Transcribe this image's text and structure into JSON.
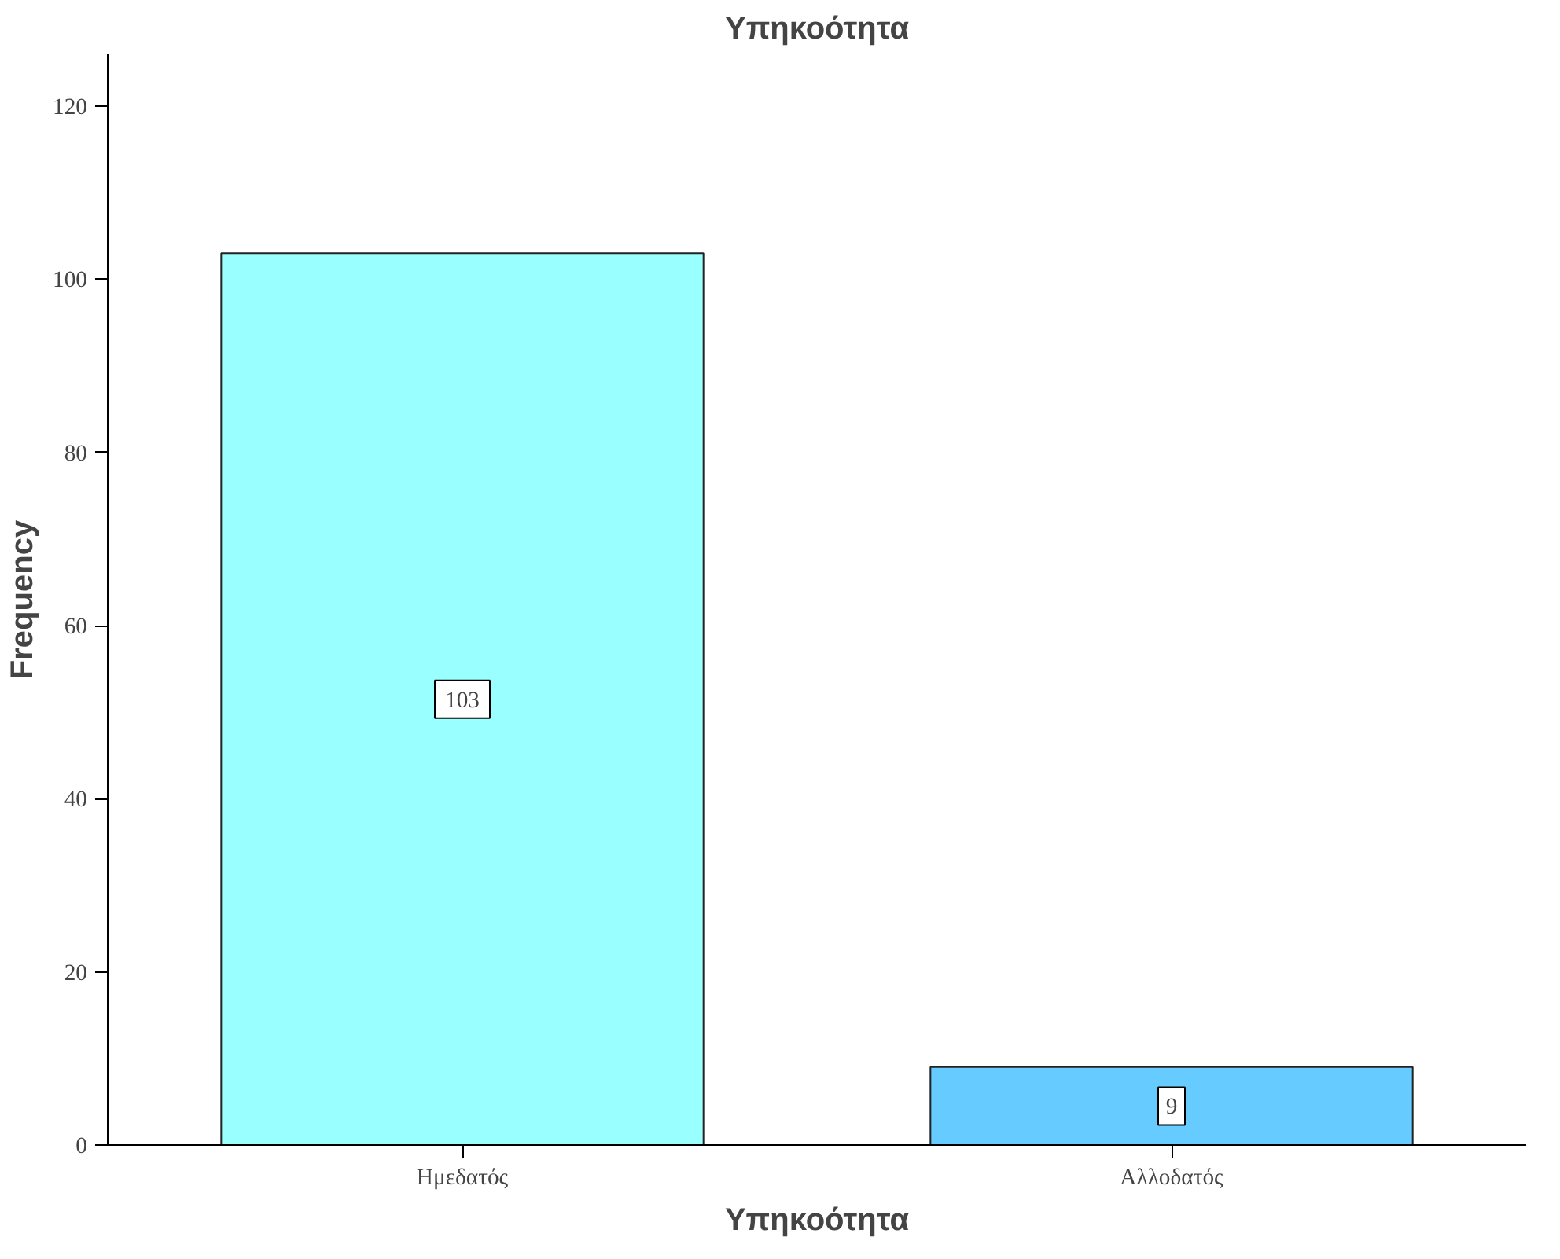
{
  "chart_data": {
    "type": "bar",
    "title": "Υπηκοότητα",
    "xlabel": "Υπηκοότητα",
    "ylabel": "Frequency",
    "categories": [
      "Ημεδατός",
      "Αλλοδατός"
    ],
    "values": [
      103,
      9
    ],
    "colors": [
      "#99ffff",
      "#66ccff"
    ],
    "ylim": [
      0,
      126
    ],
    "yticks": [
      0,
      20,
      40,
      60,
      80,
      100,
      120
    ],
    "data_labels": true,
    "grid": false
  }
}
